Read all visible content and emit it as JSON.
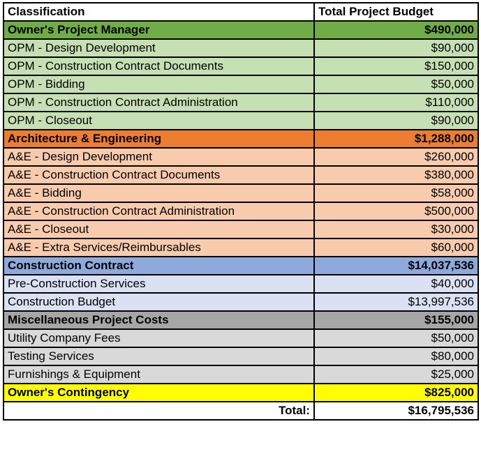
{
  "header": {
    "classification": "Classification",
    "budget": "Total Project Budget"
  },
  "sections": [
    {
      "label": "Owner's Project Manager",
      "total": "$490,000",
      "color": "#70AD47",
      "item_color": "#C6E0B4",
      "items": [
        {
          "label": "OPM - Design Development",
          "value": "$90,000"
        },
        {
          "label": "OPM - Construction Contract Documents",
          "value": "$150,000"
        },
        {
          "label": "OPM - Bidding",
          "value": "$50,000"
        },
        {
          "label": "OPM - Construction Contract Administration",
          "value": "$110,000"
        },
        {
          "label": "OPM - Closeout",
          "value": "$90,000"
        }
      ]
    },
    {
      "label": "Architecture & Engineering",
      "total": "$1,288,000",
      "color": "#ED7D31",
      "item_color": "#F8CBAD",
      "items": [
        {
          "label": "A&E - Design Development",
          "value": "$260,000"
        },
        {
          "label": "A&E - Construction Contract Documents",
          "value": "$380,000"
        },
        {
          "label": "A&E - Bidding",
          "value": "$58,000"
        },
        {
          "label": "A&E - Construction Contract Administration",
          "value": "$500,000"
        },
        {
          "label": "A&E - Closeout",
          "value": "$30,000"
        },
        {
          "label": "A&E - Extra Services/Reimbursables",
          "value": "$60,000"
        }
      ]
    },
    {
      "label": "Construction Contract",
      "total": "$14,037,536",
      "color": "#8EA9DB",
      "item_color": "#D9E1F2",
      "items": [
        {
          "label": "Pre-Construction Services",
          "value": "$40,000"
        },
        {
          "label": "Construction Budget",
          "value": "$13,997,536"
        }
      ]
    },
    {
      "label": "Miscellaneous Project Costs",
      "total": "$155,000",
      "color": "#A6A6A6",
      "item_color": "#D9D9D9",
      "items": [
        {
          "label": "Utility Company Fees",
          "value": "$50,000"
        },
        {
          "label": "Testing Services",
          "value": "$80,000"
        },
        {
          "label": "Furnishings & Equipment",
          "value": "$25,000"
        }
      ]
    },
    {
      "label": "Owner's Contingency",
      "total": "$825,000",
      "color": "#FFFF00",
      "item_color": "#FFFF00",
      "items": []
    }
  ],
  "total": {
    "label": "Total:",
    "value": "$16,795,536"
  }
}
